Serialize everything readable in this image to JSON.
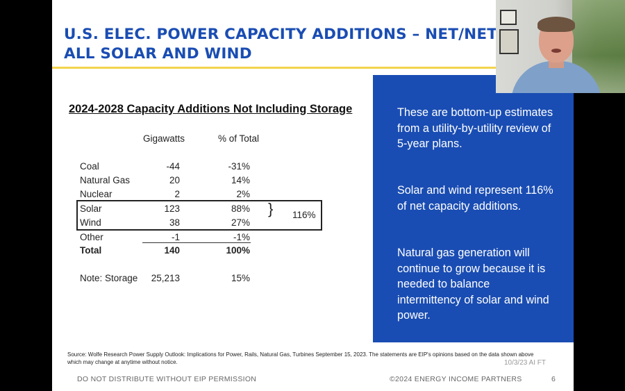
{
  "slide": {
    "title_line1": "U.S. ELEC. POWER CAPACITY ADDITIONS – NET/NET",
    "title_line2": "ALL SOLAR AND WIND",
    "table_title": "2024-2028 Capacity Additions Not Including Storage",
    "columns": {
      "gigawatts": "Gigawatts",
      "percent": "% of Total"
    },
    "rows": [
      {
        "label": "Coal",
        "gw": "-44",
        "pct": "-31%"
      },
      {
        "label": "Natural Gas",
        "gw": "20",
        "pct": "14%"
      },
      {
        "label": "Nuclear",
        "gw": "2",
        "pct": "2%"
      },
      {
        "label": "Solar",
        "gw": "123",
        "pct": "88%"
      },
      {
        "label": "Wind",
        "gw": "38",
        "pct": "27%"
      },
      {
        "label": "Other",
        "gw": "-1",
        "pct": "-1%"
      },
      {
        "label": "Total",
        "gw": "140",
        "pct": "100%"
      },
      {
        "label": "Note: Storage",
        "gw": "25,213",
        "pct": "15%"
      }
    ],
    "solar_wind_combined": "116%",
    "bullets": [
      "These are bottom-up estimates from a utility-by-utility review of 5-year plans.",
      "Solar and wind represent 116% of net capacity additions.",
      "Natural gas generation will continue to grow because it is needed to balance intermittency of solar and wind power."
    ],
    "source": "Source: Wolfe Research Power Supply Outlook: Implications for Power, Rails, Natural Gas, Turbines September 15, 2023. The statements are EIP's opinions based on the data shown above which may change at anytime without notice.",
    "stamp": "10/3/23 AI FT",
    "footer_left": "DO NOT DISTRIBUTE WITHOUT EIP PERMISSION",
    "footer_right": "©2024 ENERGY INCOME PARTNERS",
    "page_number": "6"
  },
  "colors": {
    "title_blue": "#1a4db3",
    "rule_yellow": "#f3d44a",
    "box_blue": "#1a4db3"
  }
}
